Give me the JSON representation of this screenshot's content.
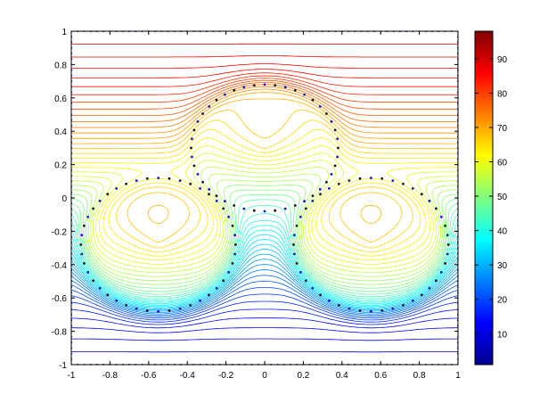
{
  "chart_data": {
    "type": "contour",
    "title": "",
    "xlabel": "",
    "ylabel": "",
    "xlim": [
      -1,
      1
    ],
    "ylim": [
      -1,
      1
    ],
    "xticks": [
      "-1",
      "-0.8",
      "-0.6",
      "-0.4",
      "-0.2",
      "0",
      "0.2",
      "0.4",
      "0.6",
      "0.8",
      "1"
    ],
    "yticks": [
      "1",
      "0.8",
      "0.6",
      "0.4",
      "0.2",
      "0",
      "-0.2",
      "-0.4",
      "-0.6",
      "-0.8",
      "-1"
    ],
    "colorbar": {
      "colormap": "jet",
      "range": [
        1,
        98
      ],
      "ticks": [
        "90",
        "80",
        "70",
        "60",
        "50",
        "40",
        "30",
        "20",
        "10"
      ]
    },
    "regions": [
      {
        "shape": "circle",
        "center": [
          0,
          0.3
        ],
        "radius": 0.38
      },
      {
        "shape": "circle",
        "center": [
          -0.55,
          -0.28
        ],
        "radius": 0.4
      },
      {
        "shape": "circle",
        "center": [
          0.55,
          -0.28
        ],
        "radius": 0.4
      }
    ],
    "grid": false,
    "legend": "none"
  }
}
